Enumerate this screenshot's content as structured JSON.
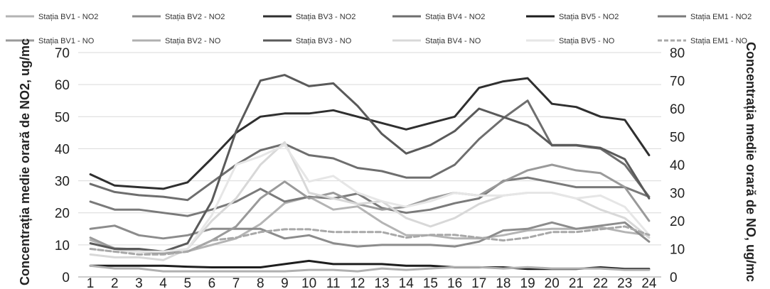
{
  "chart_data": {
    "type": "line",
    "title": "",
    "x": [
      1,
      2,
      3,
      4,
      5,
      6,
      7,
      8,
      9,
      10,
      11,
      12,
      13,
      14,
      15,
      16,
      17,
      18,
      19,
      20,
      21,
      22,
      23,
      24
    ],
    "x_tick_labels": [
      "1",
      "2",
      "3",
      "4",
      "5",
      "6",
      "7",
      "8",
      "9",
      "10",
      "11",
      "12",
      "13",
      "14",
      "15",
      "16",
      "17",
      "18",
      "19",
      "20",
      "21",
      "22",
      "23",
      "24"
    ],
    "ylabel": "Concentrația medie orară de NO2, ug/mc",
    "y2label": "Concentrația medie orară de NO, ug/mc",
    "ylim": [
      0,
      70
    ],
    "y2lim": [
      0,
      80
    ],
    "y_ticks": [
      0,
      10,
      20,
      30,
      40,
      50,
      60,
      70
    ],
    "y2_ticks": [
      0,
      10,
      20,
      30,
      40,
      50,
      60,
      70,
      80
    ],
    "y_tick_labels": [
      "0",
      "10",
      "20",
      "30",
      "40",
      "50",
      "60",
      "70"
    ],
    "y2_tick_labels": [
      "0",
      "10",
      "20",
      "30",
      "40",
      "50",
      "60",
      "70",
      "80"
    ],
    "grid": true,
    "legend_position": "top",
    "series": [
      {
        "name": "Stația BV1 - NO2",
        "axis": "left",
        "color": "#b4b4b4",
        "style": "solid",
        "values": [
          11.5,
          9,
          8.5,
          7.5,
          8,
          10,
          12,
          16.5,
          23,
          25,
          21,
          22,
          17,
          13,
          13,
          12,
          12,
          13,
          14.5,
          15,
          15,
          15.5,
          14,
          13
        ]
      },
      {
        "name": "Stația BV2 - NO2",
        "axis": "left",
        "color": "#8c8c8c",
        "style": "solid",
        "values": [
          15,
          16,
          13,
          12,
          13,
          15,
          15,
          15,
          12,
          13,
          10.5,
          9.5,
          10,
          10,
          10,
          9.5,
          11,
          14.5,
          15,
          17,
          15,
          16,
          17,
          11
        ]
      },
      {
        "name": "Stația BV3 - NO2",
        "axis": "left",
        "color": "#2f2f2f",
        "style": "solid",
        "values": [
          32,
          28.5,
          28,
          27.5,
          29.5,
          37,
          45,
          50,
          51,
          51,
          52,
          50,
          48,
          46,
          48,
          50,
          59,
          61,
          62,
          54,
          53,
          50,
          49,
          38
        ]
      },
      {
        "name": "Stația BV4 - NO2",
        "axis": "left",
        "color": "#6e6e6e",
        "style": "solid",
        "values": [
          29,
          26.5,
          25.5,
          25,
          24,
          29.5,
          35,
          39.5,
          41.5,
          38,
          37,
          34,
          33,
          31,
          31,
          35,
          43,
          49.5,
          55,
          41,
          41,
          40,
          35,
          25
        ]
      },
      {
        "name": "Stația BV5 - NO2",
        "axis": "left",
        "color": "#1e1e1e",
        "style": "solid",
        "values": [
          3.5,
          3.5,
          3.5,
          3.5,
          3.2,
          3,
          3,
          3,
          4,
          5,
          4,
          4,
          4,
          3.5,
          3.5,
          3,
          3,
          3,
          2.5,
          2.5,
          2.5,
          3,
          2.5,
          2.5
        ]
      },
      {
        "name": "Stația EM1 - NO2",
        "axis": "left",
        "color": "#7a7a7a",
        "style": "solid",
        "values": [
          23.5,
          21,
          21,
          20,
          19,
          21,
          23.5,
          27.5,
          23.5,
          25,
          24.5,
          26,
          21.5,
          20,
          21,
          23,
          24.5,
          30,
          31,
          29.5,
          28,
          28,
          28,
          25
        ]
      },
      {
        "name": "Stația BV1 - NO",
        "axis": "right",
        "color": "#9a9a9a",
        "style": "solid",
        "values": [
          14,
          10,
          9,
          8.5,
          9,
          13,
          18,
          28,
          34,
          28,
          30,
          26,
          24,
          25,
          28,
          30,
          29,
          34,
          38,
          40,
          38,
          37,
          32,
          20
        ]
      },
      {
        "name": "Stația BV2 - NO",
        "axis": "right",
        "color": "#b0b0b0",
        "style": "solid",
        "values": [
          4,
          3,
          3,
          2,
          2,
          2,
          2,
          2,
          2,
          2.5,
          2.5,
          2,
          3,
          2.5,
          3,
          3.5,
          3.5,
          3,
          3.5,
          3,
          3,
          3,
          2.5,
          2.5
        ]
      },
      {
        "name": "Stația BV3 - NO",
        "axis": "right",
        "color": "#5a5a5a",
        "style": "solid",
        "values": [
          12,
          10,
          10,
          9,
          12,
          27,
          52,
          70,
          72,
          68,
          69,
          61,
          51,
          44,
          47,
          52,
          60,
          57,
          54,
          47,
          47,
          46,
          42,
          28
        ]
      },
      {
        "name": "Stația BV4 - NO",
        "axis": "right",
        "color": "#d8d8d8",
        "style": "solid",
        "values": [
          8,
          7,
          7,
          6,
          10,
          20,
          28,
          40,
          48,
          30,
          28,
          26,
          27,
          21,
          18,
          21,
          26,
          29,
          30,
          30,
          28,
          24,
          21,
          14
        ]
      },
      {
        "name": "Stația BV5 - NO",
        "axis": "right",
        "color": "#e6e6e6",
        "style": "solid",
        "values": [
          10,
          9,
          9,
          9,
          10,
          22,
          40,
          43,
          47,
          34,
          36,
          30,
          27,
          25,
          27,
          30,
          29,
          29,
          30,
          30,
          28,
          29,
          25,
          15
        ]
      },
      {
        "name": "Stația EM1 - NO",
        "axis": "right",
        "color": "#a8a8a8",
        "style": "dashed",
        "values": [
          10,
          9,
          8,
          8,
          9,
          13,
          14,
          16,
          17,
          17,
          16,
          16,
          16,
          14,
          15,
          15,
          14,
          13,
          14,
          16,
          16,
          17,
          18,
          15
        ]
      }
    ]
  }
}
